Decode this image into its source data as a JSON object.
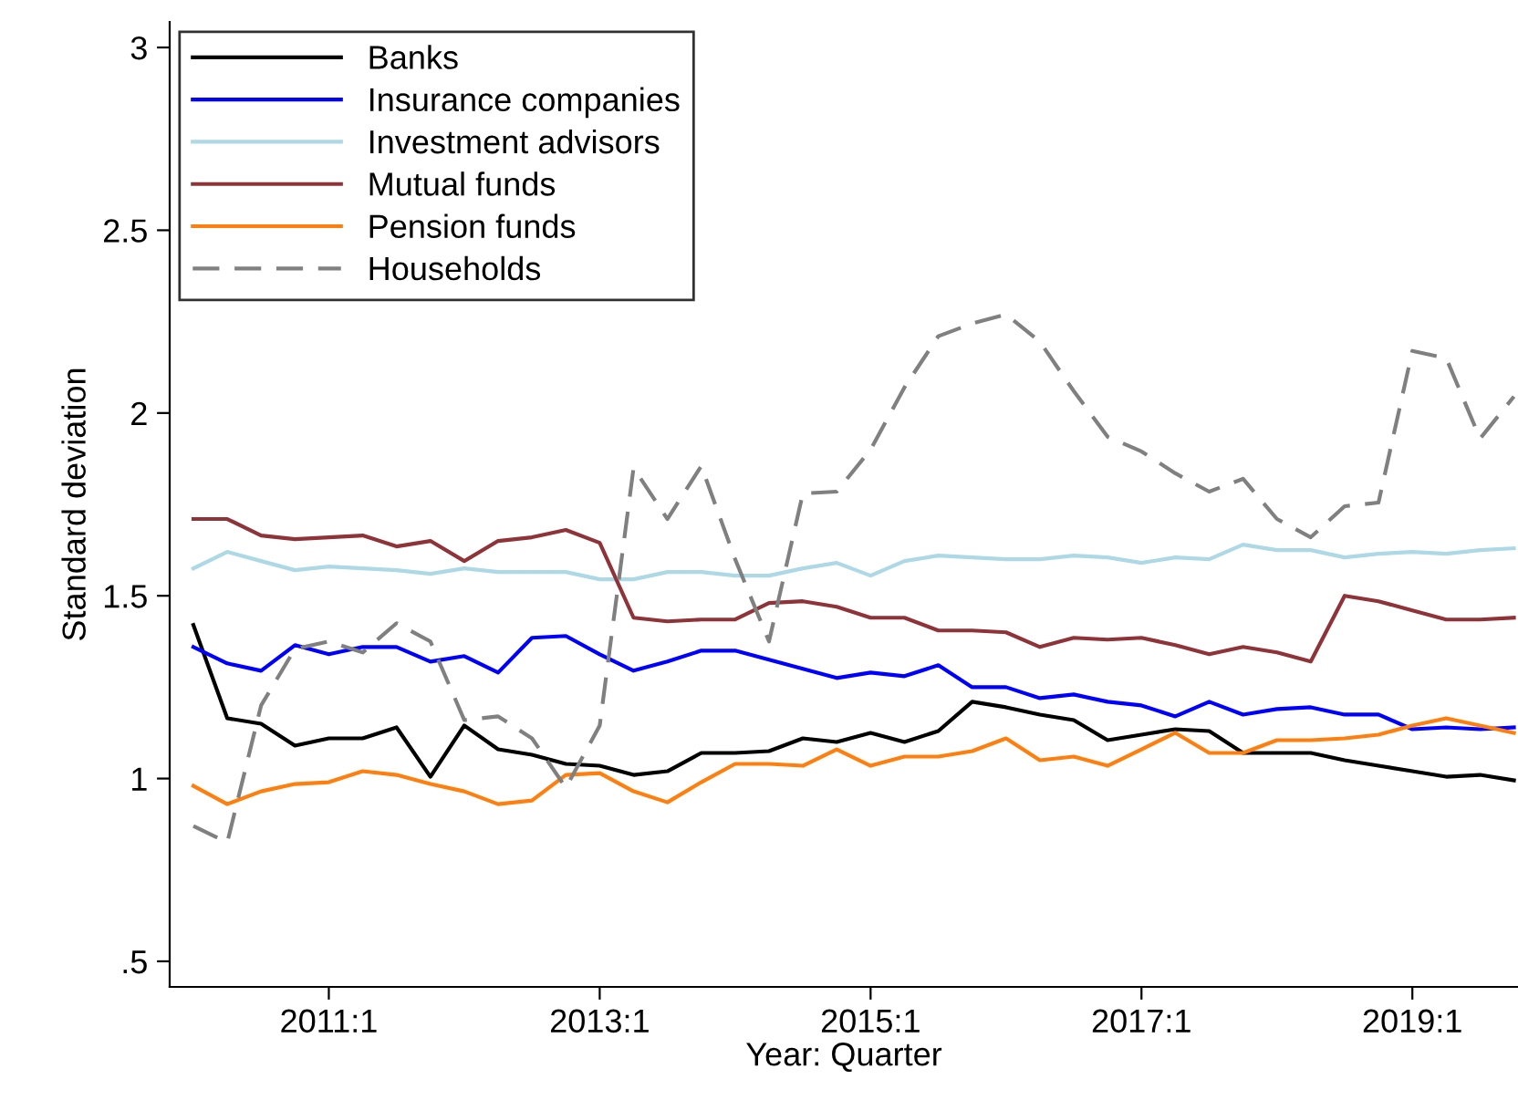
{
  "chart_data": {
    "type": "line",
    "xlabel": "Year: Quarter",
    "ylabel": "Standard deviation",
    "categories": [
      null,
      null,
      null,
      null,
      "2011:1",
      null,
      null,
      null,
      null,
      null,
      null,
      null,
      "2013:1",
      null,
      null,
      null,
      null,
      null,
      null,
      null,
      "2015:1",
      null,
      null,
      null,
      null,
      null,
      null,
      null,
      "2017:1",
      null,
      null,
      null,
      null,
      null,
      null,
      null,
      "2019:1",
      null,
      null,
      null
    ],
    "ylim": [
      0.43,
      3.07
    ],
    "yticks": [
      {
        "value": 0.5,
        "label": ".5"
      },
      1,
      1.5,
      2,
      2.5,
      3
    ],
    "grid": false,
    "legend": "top left",
    "line_style": "solid",
    "series": [
      {
        "name": "Banks",
        "color": "#000000",
        "values": [
          1.42,
          1.165,
          1.15,
          1.09,
          1.11,
          1.11,
          1.14,
          1.005,
          1.145,
          1.08,
          1.065,
          1.04,
          1.035,
          1.01,
          1.02,
          1.07,
          1.07,
          1.075,
          1.11,
          1.1,
          1.125,
          1.1,
          1.13,
          1.21,
          1.195,
          1.175,
          1.16,
          1.105,
          1.12,
          1.135,
          1.13,
          1.07,
          1.07,
          1.07,
          1.05,
          1.035,
          1.02,
          1.005,
          1.01,
          0.995
        ]
      },
      {
        "name": "Insurance companies",
        "color": "#0000ff",
        "values": [
          1.36,
          1.315,
          1.295,
          1.365,
          1.34,
          1.36,
          1.36,
          1.32,
          1.335,
          1.29,
          1.385,
          1.39,
          1.34,
          1.295,
          1.32,
          1.35,
          1.35,
          1.325,
          1.3,
          1.275,
          1.29,
          1.28,
          1.31,
          1.25,
          1.25,
          1.22,
          1.23,
          1.21,
          1.2,
          1.17,
          1.21,
          1.175,
          1.19,
          1.195,
          1.175,
          1.175,
          1.135,
          1.14,
          1.135,
          1.14
        ]
      },
      {
        "name": "Investment advisors",
        "color": "#add8e6",
        "values": [
          1.575,
          1.62,
          1.595,
          1.57,
          1.58,
          1.575,
          1.57,
          1.56,
          1.575,
          1.565,
          1.565,
          1.565,
          1.545,
          1.545,
          1.565,
          1.565,
          1.555,
          1.555,
          1.575,
          1.59,
          1.555,
          1.595,
          1.61,
          1.605,
          1.6,
          1.6,
          1.61,
          1.605,
          1.59,
          1.605,
          1.6,
          1.64,
          1.625,
          1.625,
          1.605,
          1.615,
          1.62,
          1.615,
          1.625,
          1.63
        ]
      },
      {
        "name": "Mutual funds",
        "color": "#8f3339",
        "values": [
          1.71,
          1.71,
          1.665,
          1.655,
          1.66,
          1.665,
          1.635,
          1.65,
          1.595,
          1.65,
          1.66,
          1.68,
          1.645,
          1.44,
          1.43,
          1.435,
          1.435,
          1.48,
          1.485,
          1.47,
          1.44,
          1.44,
          1.405,
          1.405,
          1.4,
          1.36,
          1.385,
          1.38,
          1.385,
          1.365,
          1.34,
          1.36,
          1.345,
          1.32,
          1.5,
          1.485,
          1.46,
          1.435,
          1.435,
          1.44
        ]
      },
      {
        "name": "Pension funds",
        "color": "#ff7f0e",
        "values": [
          0.98,
          0.93,
          0.965,
          0.985,
          0.99,
          1.02,
          1.01,
          0.985,
          0.965,
          0.93,
          0.94,
          1.01,
          1.015,
          0.965,
          0.935,
          0.99,
          1.04,
          1.04,
          1.035,
          1.08,
          1.035,
          1.06,
          1.06,
          1.075,
          1.11,
          1.05,
          1.06,
          1.035,
          1.08,
          1.125,
          1.07,
          1.07,
          1.105,
          1.105,
          1.11,
          1.12,
          1.145,
          1.165,
          1.145,
          1.125
        ]
      },
      {
        "name": "Households",
        "color": "#808080",
        "line_style": "dashed",
        "values": [
          0.87,
          0.825,
          1.2,
          1.355,
          1.375,
          1.345,
          1.425,
          1.375,
          1.16,
          1.17,
          1.11,
          0.975,
          1.145,
          1.85,
          1.71,
          1.855,
          1.6,
          1.375,
          1.78,
          1.785,
          1.9,
          2.07,
          2.21,
          2.245,
          2.27,
          2.195,
          2.06,
          1.935,
          1.895,
          1.835,
          1.785,
          1.82,
          1.71,
          1.66,
          1.745,
          1.755,
          2.17,
          2.15,
          1.93,
          2.045
        ]
      }
    ]
  }
}
